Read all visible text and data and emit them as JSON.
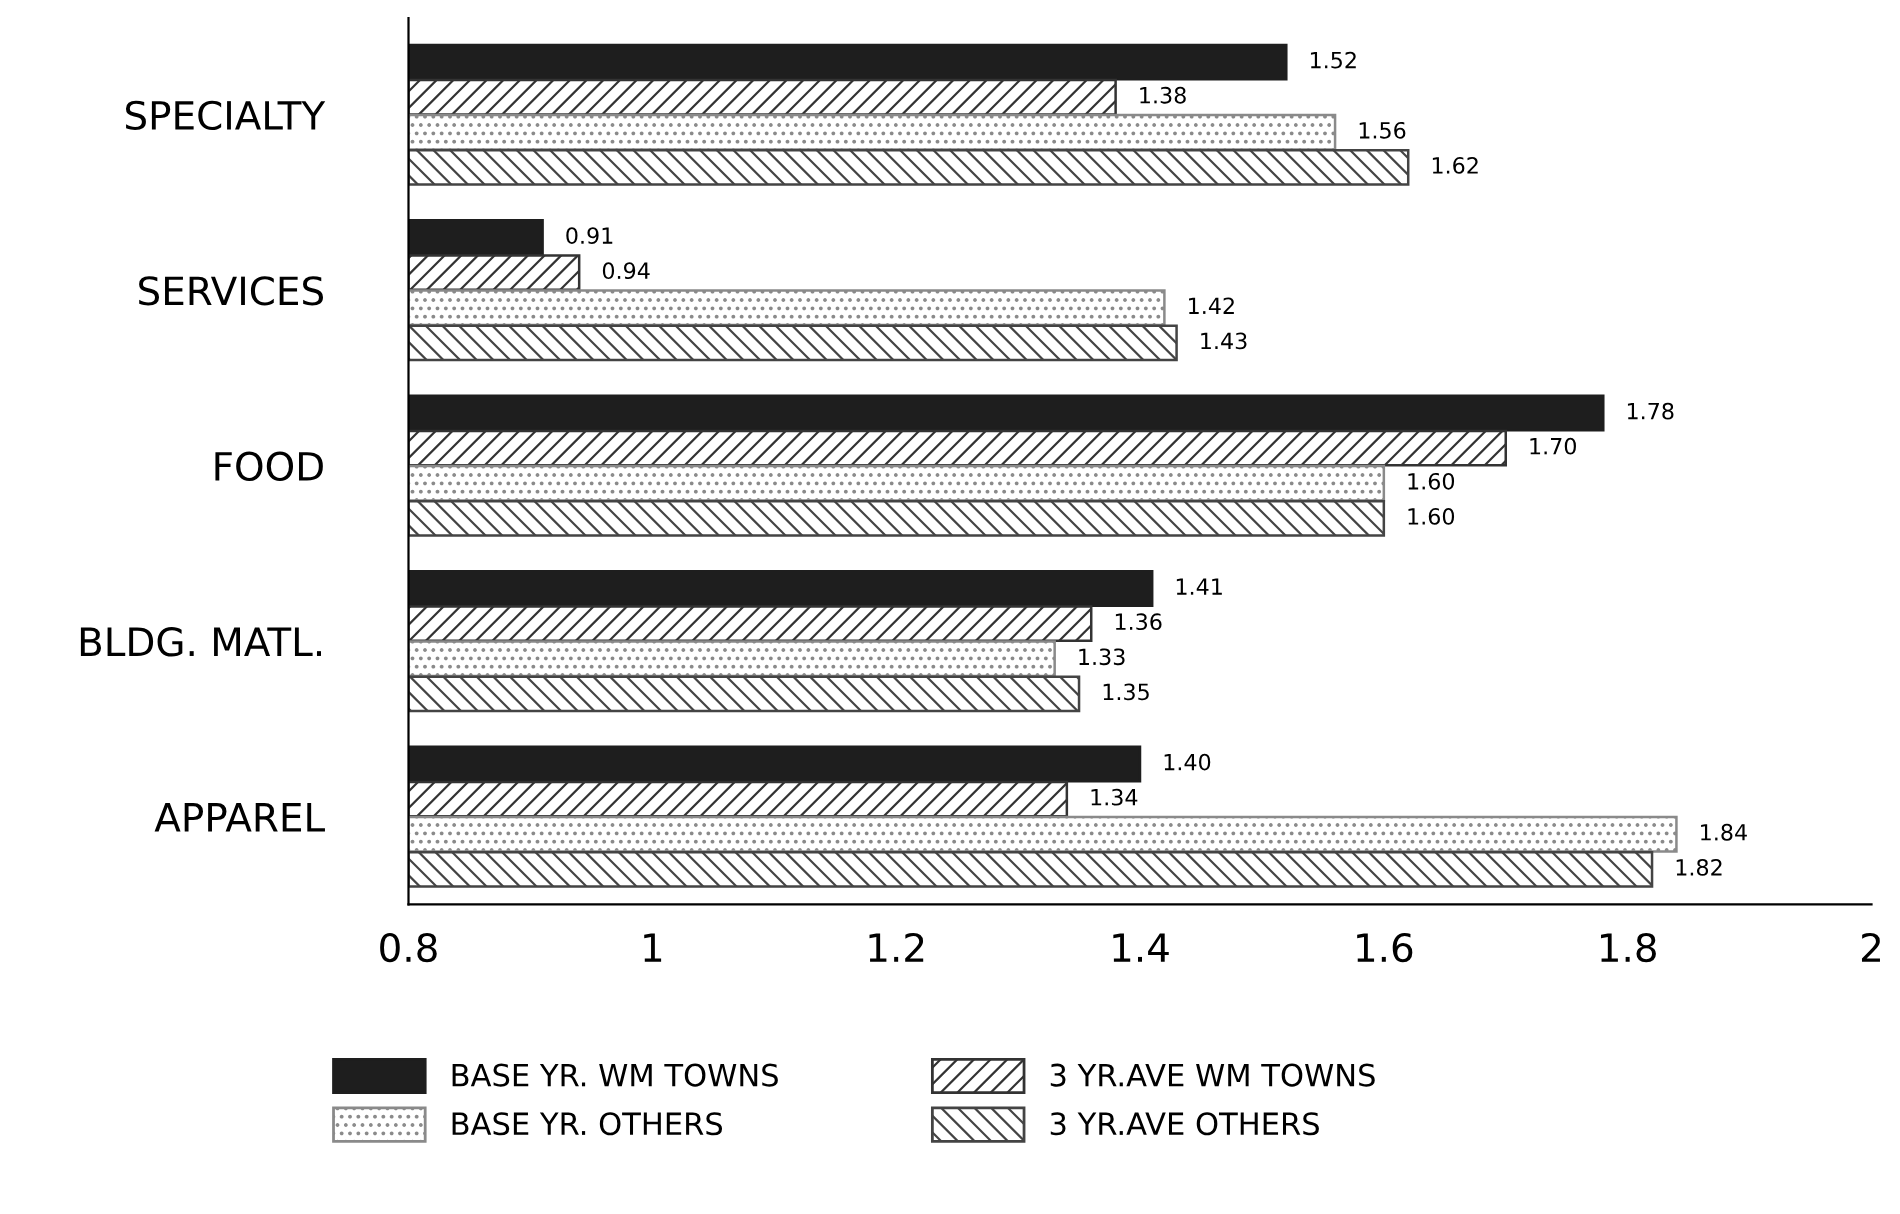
{
  "chart_data": {
    "type": "bar",
    "orientation": "horizontal",
    "categories": [
      "SPECIALTY",
      "SERVICES",
      "FOOD",
      "BLDG. MATL.",
      "APPAREL"
    ],
    "series": [
      {
        "name": "BASE YR. WM TOWNS",
        "color": "#1e1e1e",
        "values": [
          1.52,
          0.91,
          1.78,
          1.41,
          1.4
        ],
        "value_labels": [
          "1.52",
          "0.91",
          "1.78",
          "1.41",
          "1.40"
        ]
      },
      {
        "name": "3 YR.AVE WM TOWNS",
        "color": "#333333",
        "values": [
          1.38,
          0.94,
          1.7,
          1.36,
          1.34
        ],
        "value_labels": [
          "1.38",
          "0.94",
          "1.70",
          "1.36",
          "1.34"
        ]
      },
      {
        "name": "BASE YR. OTHERS",
        "color": "#8a8a8a",
        "values": [
          1.56,
          1.42,
          1.6,
          1.33,
          1.84
        ],
        "value_labels": [
          "1.56",
          "1.42",
          "1.60",
          "1.33",
          "1.84"
        ]
      },
      {
        "name": "3 YR.AVE OTHERS",
        "color": "#444444",
        "values": [
          1.62,
          1.43,
          1.6,
          1.35,
          1.82
        ],
        "value_labels": [
          "1.62",
          "1.43",
          "1.60",
          "1.35",
          "1.82"
        ]
      }
    ],
    "xlim": [
      0.8,
      2
    ],
    "xticks": [
      0.8,
      1,
      1.2,
      1.4,
      1.6,
      1.8,
      2
    ],
    "grid": false,
    "legend": "bottom"
  }
}
